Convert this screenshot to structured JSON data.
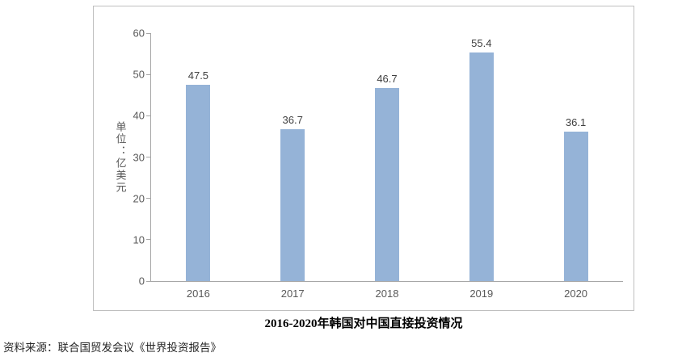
{
  "chart_data": {
    "type": "bar",
    "categories": [
      "2016",
      "2017",
      "2018",
      "2019",
      "2020"
    ],
    "values": [
      47.5,
      36.7,
      46.7,
      55.4,
      36.1
    ],
    "title": "2016-2020年韩国对中国直接投资情况",
    "xlabel": "",
    "ylabel": "单位：亿美元",
    "ylim": [
      0,
      60
    ],
    "yticks": [
      0,
      10,
      20,
      30,
      40,
      50,
      60
    ],
    "bar_color": "#95b3d7",
    "grid": false,
    "legend_position": "none"
  },
  "source_note": "资料来源：联合国贸发会议《世界投资报告》"
}
